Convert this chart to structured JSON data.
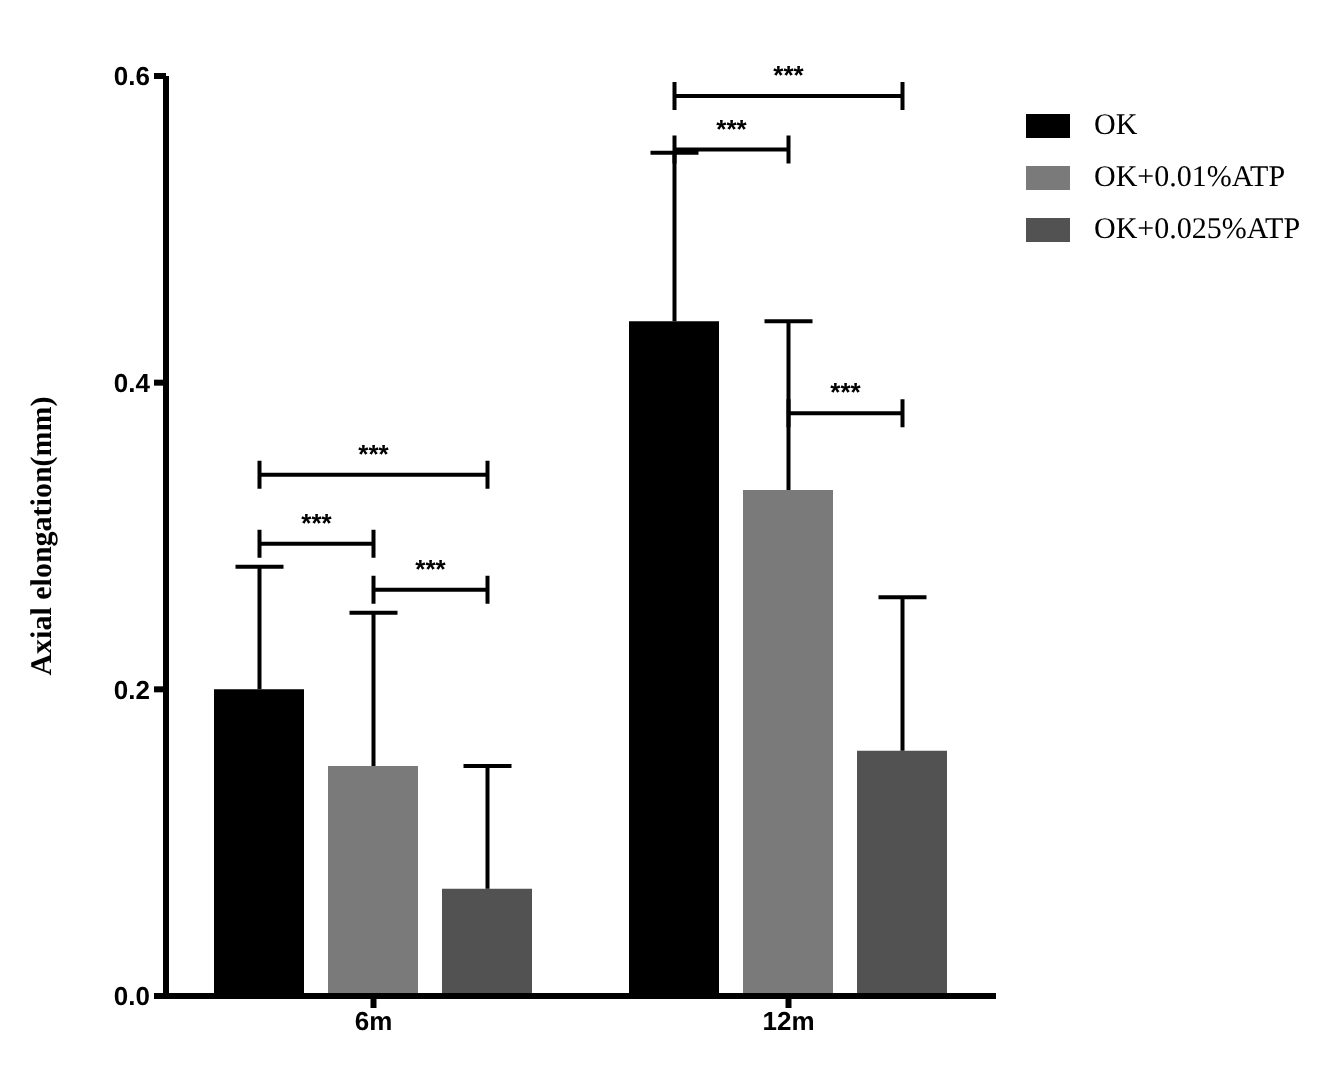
{
  "chart_data": {
    "type": "bar",
    "ylabel": "Axial elongation(mm)",
    "categories": [
      "6m",
      "12m"
    ],
    "series": [
      {
        "name": "OK",
        "color": "#000000",
        "values": [
          0.2,
          0.44
        ],
        "errors": [
          [
            0.2,
            0.28
          ],
          [
            0.44,
            0.55
          ]
        ]
      },
      {
        "name": "OK+0.01%ATP",
        "color": "#7a7a7a",
        "values": [
          0.15,
          0.33
        ],
        "errors": [
          [
            0.15,
            0.25
          ],
          [
            0.33,
            0.44
          ]
        ]
      },
      {
        "name": "OK+0.025%ATP",
        "color": "#525252",
        "values": [
          0.07,
          0.16
        ],
        "errors": [
          [
            0.07,
            0.15
          ],
          [
            0.16,
            0.26
          ]
        ]
      }
    ],
    "ylim": [
      0,
      0.6
    ],
    "yticks": [
      {
        "value": 0,
        "label": "0.0"
      },
      0.2,
      0.4,
      0.6
    ],
    "grid": false,
    "legend": "top right",
    "annotations": [
      "***",
      "***",
      "***",
      "***",
      "***",
      "***"
    ]
  }
}
